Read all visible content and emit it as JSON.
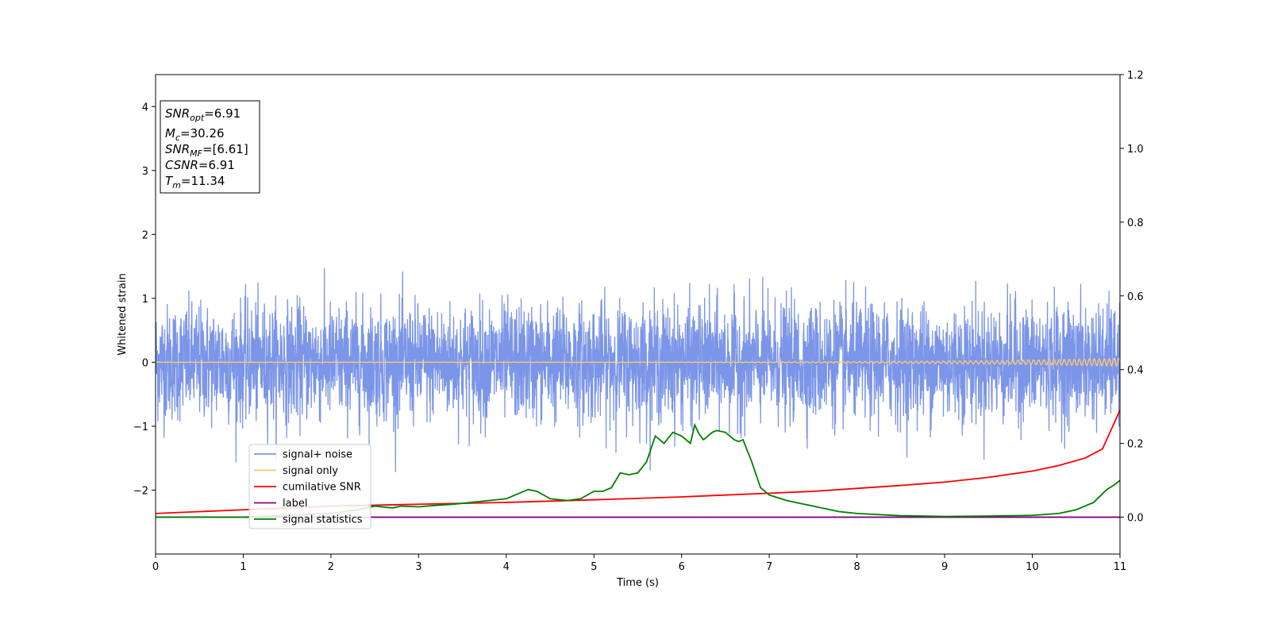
{
  "chart_data": {
    "type": "line",
    "xlabel": "Time (s)",
    "ylabel": "Whitened strain",
    "xlim": [
      0,
      11
    ],
    "ylim": [
      -3,
      4.5
    ],
    "y2lim": [
      -0.1,
      1.2
    ],
    "x_ticks": [
      0,
      1,
      2,
      3,
      4,
      5,
      6,
      7,
      8,
      9,
      10,
      11
    ],
    "y_ticks": [
      -2,
      -1,
      0,
      1,
      2,
      3,
      4
    ],
    "y2_ticks": [
      0.0,
      0.2,
      0.4,
      0.6,
      0.8,
      1.0,
      1.2
    ],
    "grid": false,
    "legend_position": "lower-left",
    "series": [
      {
        "name": "signal+ noise",
        "axis": "left",
        "color": "#7b95e8",
        "description_kind": "noise",
        "duration": 11,
        "std": 0.45,
        "max_peak": 1.65,
        "min_peak": -1.72
      },
      {
        "name": "signal only",
        "axis": "left",
        "color": "#f5c57a",
        "kind": "chirp",
        "amplitude_end": 0.06,
        "duration": 11
      },
      {
        "name": "cumilative SNR",
        "axis": "right",
        "color": "#ff0000",
        "x": [
          0,
          1,
          2,
          3,
          4,
          5,
          6,
          7,
          7.5,
          8,
          8.5,
          9,
          9.5,
          10,
          10.3,
          10.6,
          10.8,
          11
        ],
        "y": [
          0.01,
          0.02,
          0.03,
          0.035,
          0.04,
          0.047,
          0.055,
          0.065,
          0.07,
          0.078,
          0.086,
          0.095,
          0.108,
          0.125,
          0.14,
          0.16,
          0.185,
          0.29
        ]
      },
      {
        "name": "label",
        "axis": "right",
        "color": "#800080",
        "x": [
          0,
          11
        ],
        "y": [
          0,
          0
        ]
      },
      {
        "name": "signal statistics",
        "axis": "right",
        "color": "#008000",
        "x": [
          0,
          1,
          1.5,
          2,
          2.3,
          2.5,
          2.7,
          2.8,
          3,
          3.2,
          3.4,
          3.6,
          3.8,
          4,
          4.1,
          4.25,
          4.35,
          4.5,
          4.7,
          4.85,
          5,
          5.1,
          5.2,
          5.3,
          5.4,
          5.5,
          5.6,
          5.7,
          5.8,
          5.9,
          6.0,
          6.1,
          6.15,
          6.2,
          6.25,
          6.35,
          6.4,
          6.5,
          6.6,
          6.65,
          6.7,
          6.8,
          6.9,
          7.0,
          7.2,
          7.5,
          7.8,
          8.0,
          8.5,
          9.0,
          9.5,
          10.0,
          10.3,
          10.5,
          10.7,
          10.85,
          10.95,
          11
        ],
        "y": [
          0.0,
          0.0,
          0.005,
          0.01,
          0.02,
          0.03,
          0.025,
          0.03,
          0.028,
          0.032,
          0.035,
          0.04,
          0.045,
          0.05,
          0.06,
          0.075,
          0.07,
          0.05,
          0.045,
          0.05,
          0.07,
          0.07,
          0.08,
          0.12,
          0.115,
          0.12,
          0.15,
          0.22,
          0.2,
          0.23,
          0.22,
          0.2,
          0.25,
          0.225,
          0.21,
          0.23,
          0.235,
          0.23,
          0.21,
          0.205,
          0.21,
          0.15,
          0.08,
          0.06,
          0.045,
          0.03,
          0.015,
          0.01,
          0.004,
          0.002,
          0.003,
          0.005,
          0.01,
          0.02,
          0.04,
          0.075,
          0.09,
          0.1
        ]
      }
    ]
  },
  "info_box": {
    "lines": [
      {
        "main": "SNR",
        "sub": "opt",
        "rest": "=6.91"
      },
      {
        "main": "M",
        "sub": "c",
        "rest": "=30.26"
      },
      {
        "main": "SNR",
        "sub": "MF",
        "rest": "=[6.61]"
      },
      {
        "main": "CSNR",
        "sub": "",
        "rest": "=6.91"
      },
      {
        "main": "T",
        "sub": "m",
        "rest": "=11.34"
      }
    ]
  }
}
